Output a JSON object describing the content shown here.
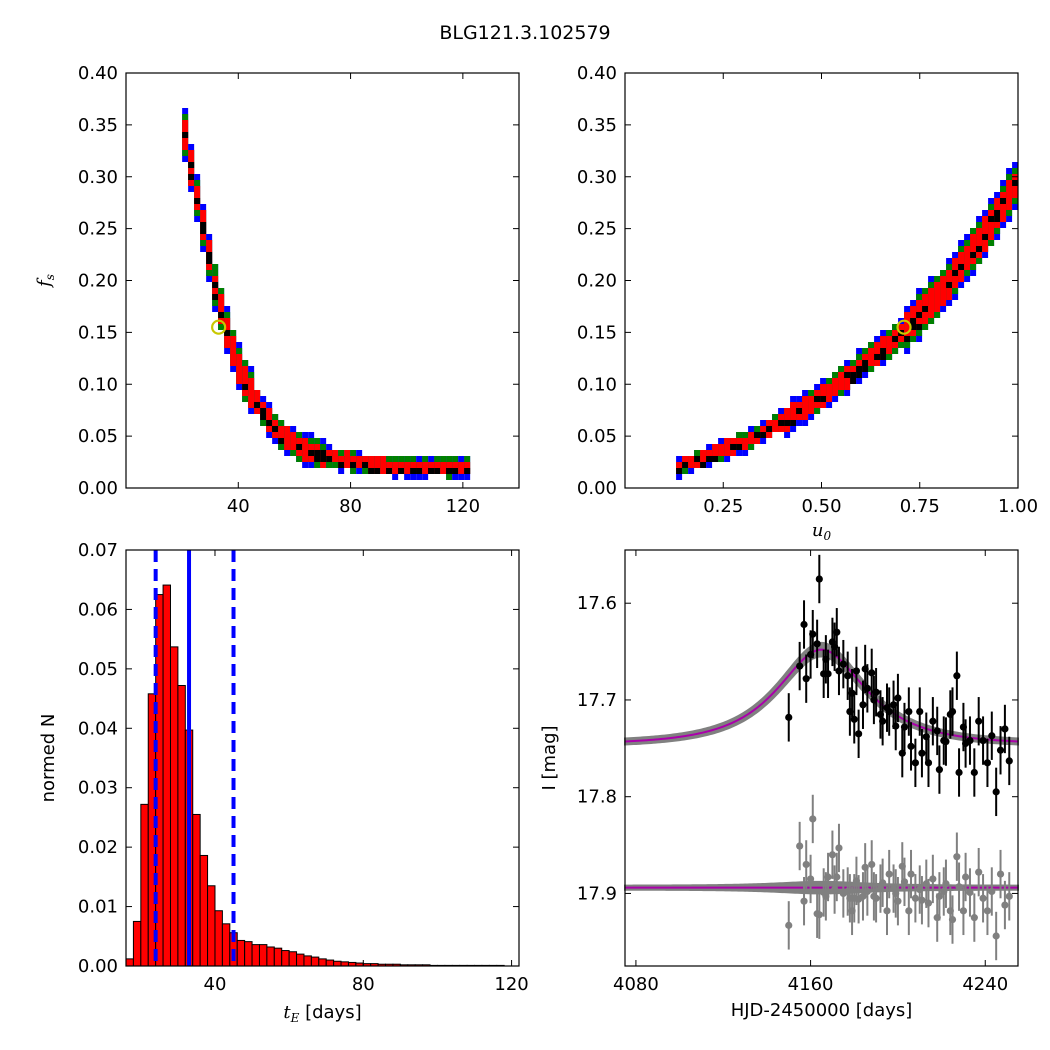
{
  "suptitle": "BLG121.3.102579",
  "colors": {
    "contour_inner": "#000000",
    "contour_1sigma": "#ff0000",
    "contour_2sigma": "#008000",
    "contour_3sigma": "#0000ff",
    "marker_best": "#c8c800",
    "hist_fill": "#ff0000",
    "vline": "#0000ff",
    "data_primary": "#000000",
    "data_secondary": "#808080",
    "model_band": "#808080",
    "model_line": "#aa00aa"
  },
  "chart_data": [
    {
      "id": "fs_vs_tE",
      "type": "heatmap",
      "title": "",
      "xlabel": "",
      "ylabel": "f_s",
      "xlim": [
        0,
        140
      ],
      "ylim": [
        0.0,
        0.4
      ],
      "xticks": [
        40,
        80,
        120
      ],
      "yticks": [
        0.0,
        0.05,
        0.1,
        0.15,
        0.2,
        0.25,
        0.3,
        0.35,
        0.4
      ],
      "ytick_labels": [
        "0.00",
        "0.05",
        "0.10",
        "0.15",
        "0.20",
        "0.25",
        "0.30",
        "0.35",
        "0.40"
      ],
      "ridge_x": [
        20,
        22,
        25,
        28,
        31,
        35,
        40,
        45,
        50,
        55,
        60,
        70,
        80,
        95,
        110,
        122
      ],
      "ridge_y": [
        0.34,
        0.31,
        0.27,
        0.23,
        0.19,
        0.15,
        0.11,
        0.085,
        0.065,
        0.05,
        0.04,
        0.03,
        0.025,
        0.02,
        0.02,
        0.02
      ],
      "best_fit": {
        "x": 33,
        "y": 0.155
      }
    },
    {
      "id": "fs_vs_u0",
      "type": "heatmap",
      "title": "",
      "xlabel": "u_0",
      "ylabel": "",
      "xlim": [
        0.0,
        1.0
      ],
      "ylim": [
        0.0,
        0.4
      ],
      "xticks": [
        0.25,
        0.5,
        0.75,
        1.0
      ],
      "xtick_labels": [
        "0.25",
        "0.50",
        "0.75",
        "1.00"
      ],
      "yticks": [
        0.0,
        0.05,
        0.1,
        0.15,
        0.2,
        0.25,
        0.3,
        0.35,
        0.4
      ],
      "ytick_labels": [
        "0.00",
        "0.05",
        "0.10",
        "0.15",
        "0.20",
        "0.25",
        "0.30",
        "0.35",
        "0.40"
      ],
      "ridge_x": [
        0.13,
        0.2,
        0.3,
        0.4,
        0.5,
        0.6,
        0.7,
        0.8,
        0.9,
        1.0
      ],
      "ridge_y": [
        0.02,
        0.03,
        0.045,
        0.065,
        0.09,
        0.12,
        0.15,
        0.19,
        0.24,
        0.3
      ],
      "best_fit": {
        "x": 0.71,
        "y": 0.155
      }
    },
    {
      "id": "tE_histogram",
      "type": "bar",
      "title": "",
      "xlabel": "t_E [days]",
      "ylabel": "normed N",
      "xlim": [
        16,
        122
      ],
      "ylim": [
        0.0,
        0.07
      ],
      "xticks": [
        40,
        80,
        120
      ],
      "yticks": [
        0.0,
        0.01,
        0.02,
        0.03,
        0.04,
        0.05,
        0.06,
        0.07
      ],
      "ytick_labels": [
        "0.00",
        "0.01",
        "0.02",
        "0.03",
        "0.04",
        "0.05",
        "0.06",
        "0.07"
      ],
      "bin_start": 16,
      "bin_width": 2,
      "values": [
        0.0012,
        0.0075,
        0.0272,
        0.0458,
        0.0625,
        0.0641,
        0.0537,
        0.0472,
        0.0397,
        0.0255,
        0.0186,
        0.0135,
        0.0093,
        0.0071,
        0.0056,
        0.0043,
        0.0041,
        0.0036,
        0.0036,
        0.0032,
        0.003,
        0.0026,
        0.0024,
        0.002,
        0.0017,
        0.0015,
        0.0012,
        0.001,
        0.0008,
        0.0007,
        0.0006,
        0.0005,
        0.0004,
        0.0004,
        0.0003,
        0.0003,
        0.0003,
        0.0002,
        0.0002,
        0.0002,
        0.0002,
        0.0001,
        0.0001,
        0.0001,
        0.0001,
        0.0001,
        0.0001,
        0.0001,
        0.0001,
        0.0001,
        0.0001
      ],
      "vlines": [
        {
          "x": 33,
          "style": "solid"
        },
        {
          "x": 24,
          "style": "dashed"
        },
        {
          "x": 45,
          "style": "dashed"
        }
      ]
    },
    {
      "id": "lightcurve",
      "type": "scatter",
      "title": "",
      "xlabel": "HJD-2450000 [days]",
      "ylabel": "I [mag]",
      "xlim": [
        4075,
        4255
      ],
      "ylim": [
        17.975,
        17.545
      ],
      "y_inverted": true,
      "xticks": [
        4080,
        4160,
        4240
      ],
      "yticks": [
        17.6,
        17.7,
        17.8,
        17.9
      ],
      "ytick_labels": [
        "17.6",
        "17.7",
        "17.8",
        "17.9"
      ],
      "model": {
        "baseline": 17.746,
        "peak_mag": 17.648,
        "t0": 4165,
        "tE": 33,
        "u0": 0.71
      },
      "model_residual_level": 17.894,
      "series": [
        {
          "role": "data",
          "x": [
            4150,
            4155,
            4157,
            4158,
            4160,
            4161,
            4163,
            4164,
            4166,
            4167,
            4168,
            4170,
            4171,
            4172,
            4173,
            4175,
            4177,
            4178,
            4179,
            4180,
            4181,
            4182,
            4184,
            4185,
            4186,
            4188,
            4189,
            4190,
            4192,
            4193,
            4195,
            4196,
            4198,
            4199,
            4200,
            4202,
            4203,
            4205,
            4206,
            4208,
            4210,
            4211,
            4213,
            4214,
            4216,
            4218,
            4219,
            4221,
            4222,
            4224,
            4225,
            4227,
            4228,
            4230,
            4231,
            4233,
            4235,
            4237,
            4239,
            4241,
            4243,
            4245,
            4247,
            4249,
            4251
          ],
          "y": [
            17.718,
            17.665,
            17.622,
            17.678,
            17.653,
            17.632,
            17.642,
            17.575,
            17.673,
            17.658,
            17.673,
            17.64,
            17.645,
            17.63,
            17.67,
            17.663,
            17.675,
            17.712,
            17.693,
            17.72,
            17.67,
            17.735,
            17.705,
            17.668,
            17.688,
            17.672,
            17.7,
            17.692,
            17.715,
            17.722,
            17.708,
            17.712,
            17.705,
            17.727,
            17.698,
            17.755,
            17.728,
            17.712,
            17.748,
            17.765,
            17.712,
            17.755,
            17.738,
            17.765,
            17.722,
            17.732,
            17.772,
            17.742,
            17.743,
            17.715,
            17.712,
            17.675,
            17.775,
            17.728,
            17.745,
            17.742,
            17.775,
            17.722,
            17.742,
            17.765,
            17.737,
            17.795,
            17.752,
            17.73,
            17.763
          ],
          "yerr": 0.025
        },
        {
          "role": "residuals",
          "x": [
            4150,
            4155,
            4157,
            4158,
            4160,
            4161,
            4163,
            4164,
            4166,
            4167,
            4168,
            4170,
            4171,
            4172,
            4173,
            4175,
            4177,
            4178,
            4179,
            4180,
            4181,
            4182,
            4184,
            4185,
            4186,
            4188,
            4189,
            4190,
            4192,
            4193,
            4195,
            4196,
            4198,
            4199,
            4200,
            4202,
            4203,
            4205,
            4206,
            4208,
            4210,
            4211,
            4213,
            4214,
            4216,
            4218,
            4219,
            4221,
            4222,
            4224,
            4225,
            4227,
            4228,
            4230,
            4231,
            4233,
            4235,
            4237,
            4239,
            4241,
            4243,
            4245,
            4247,
            4249,
            4251
          ],
          "y": [
            17.933,
            17.851,
            17.908,
            17.87,
            17.885,
            17.823,
            17.921,
            17.922,
            17.899,
            17.903,
            17.883,
            17.86,
            17.896,
            17.883,
            17.853,
            17.9,
            17.898,
            17.905,
            17.918,
            17.905,
            17.887,
            17.906,
            17.903,
            17.873,
            17.898,
            17.87,
            17.903,
            17.905,
            17.895,
            17.889,
            17.918,
            17.88,
            17.895,
            17.9,
            17.908,
            17.872,
            17.888,
            17.918,
            17.88,
            17.905,
            17.896,
            17.907,
            17.89,
            17.91,
            17.885,
            17.925,
            17.903,
            17.898,
            17.89,
            17.918,
            17.927,
            17.862,
            17.893,
            17.918,
            17.883,
            17.899,
            17.925,
            17.878,
            17.905,
            17.918,
            17.898,
            17.944,
            17.88,
            17.912,
            17.903
          ],
          "yerr": 0.025
        }
      ]
    }
  ]
}
